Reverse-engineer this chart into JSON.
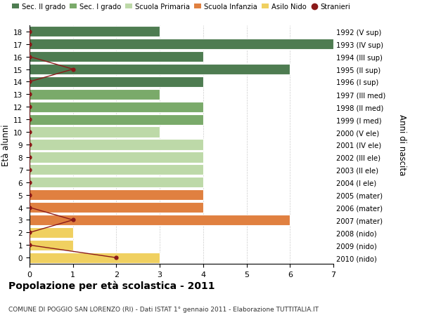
{
  "ages": [
    18,
    17,
    16,
    15,
    14,
    13,
    12,
    11,
    10,
    9,
    8,
    7,
    6,
    5,
    4,
    3,
    2,
    1,
    0
  ],
  "years": [
    "1992 (V sup)",
    "1993 (IV sup)",
    "1994 (III sup)",
    "1995 (II sup)",
    "1996 (I sup)",
    "1997 (III med)",
    "1998 (II med)",
    "1999 (I med)",
    "2000 (V ele)",
    "2001 (IV ele)",
    "2002 (III ele)",
    "2003 (II ele)",
    "2004 (I ele)",
    "2005 (mater)",
    "2006 (mater)",
    "2007 (mater)",
    "2008 (nido)",
    "2009 (nido)",
    "2010 (nido)"
  ],
  "bar_values": [
    3,
    7,
    4,
    6,
    4,
    3,
    4,
    4,
    3,
    4,
    4,
    4,
    4,
    4,
    4,
    6,
    1,
    1,
    3
  ],
  "bar_colors": [
    "#4e7c51",
    "#4e7c51",
    "#4e7c51",
    "#4e7c51",
    "#4e7c51",
    "#7aaa6a",
    "#7aaa6a",
    "#7aaa6a",
    "#bdd9a8",
    "#bdd9a8",
    "#bdd9a8",
    "#bdd9a8",
    "#bdd9a8",
    "#e08040",
    "#e08040",
    "#e08040",
    "#f0d060",
    "#f0d060",
    "#f0d060"
  ],
  "stranieri_x": [
    0,
    0,
    0,
    1,
    0,
    0,
    0,
    0,
    0,
    0,
    0,
    0,
    0,
    0,
    0,
    1,
    0,
    0,
    2
  ],
  "stranieri_ages": [
    18,
    17,
    16,
    15,
    14,
    13,
    12,
    11,
    10,
    9,
    8,
    7,
    6,
    5,
    4,
    3,
    2,
    1,
    0
  ],
  "xlim": [
    0,
    7
  ],
  "ylim": [
    -0.5,
    18.5
  ],
  "ylabel_left": "Età alunni",
  "ylabel_right": "Anni di nascita",
  "title": "Popolazione per età scolastica - 2011",
  "subtitle": "COMUNE DI POGGIO SAN LORENZO (RI) - Dati ISTAT 1° gennaio 2011 - Elaborazione TUTTITALIA.IT",
  "legend_labels": [
    "Sec. II grado",
    "Sec. I grado",
    "Scuola Primaria",
    "Scuola Infanzia",
    "Asilo Nido",
    "Stranieri"
  ],
  "legend_colors": [
    "#4e7c51",
    "#7aaa6a",
    "#bdd9a8",
    "#e08040",
    "#f0d060",
    "#cc1111"
  ],
  "stranieri_color": "#8b1a1a",
  "grid_color": "#cccccc",
  "bg_color": "#ffffff",
  "bar_height": 0.85
}
